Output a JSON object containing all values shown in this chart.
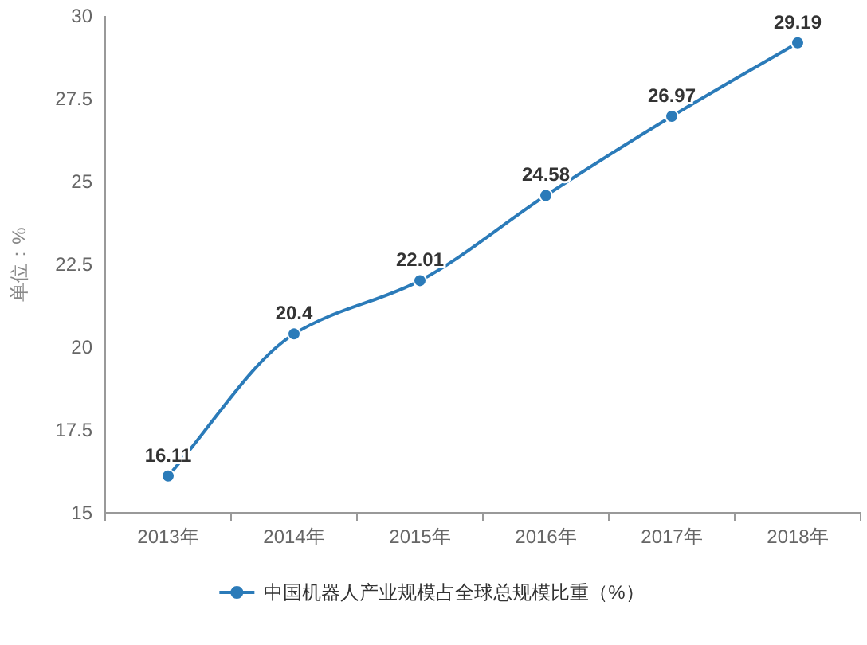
{
  "chart_data": {
    "type": "line",
    "ylabel": "单位：%",
    "categories": [
      "2013年",
      "2014年",
      "2015年",
      "2016年",
      "2017年",
      "2018年"
    ],
    "series": [
      {
        "name": "中国机器人产业规模占全球总规模比重（%）",
        "color": "#2b7bb9",
        "values": [
          16.11,
          20.4,
          22.01,
          24.58,
          26.97,
          29.19
        ]
      }
    ],
    "ylim": [
      15,
      30
    ],
    "yticks": [
      15,
      17.5,
      20,
      22.5,
      25,
      27.5,
      30
    ],
    "data_labels": true,
    "marker": "circle",
    "line_style": "solid",
    "grid": false,
    "legend": "bottom"
  }
}
